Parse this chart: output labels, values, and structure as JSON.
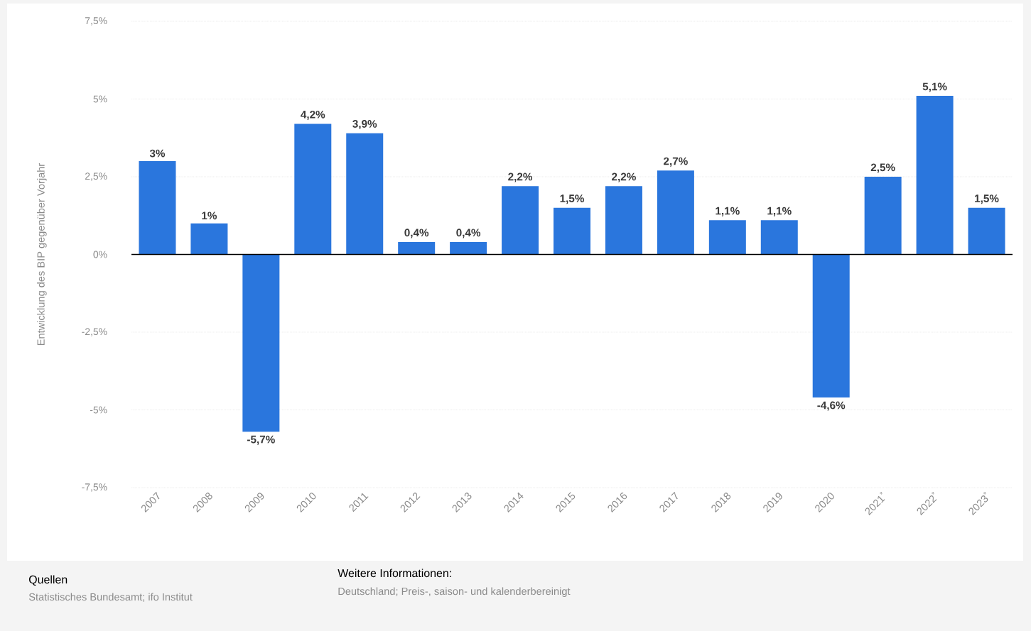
{
  "chart_data": {
    "type": "bar",
    "ylabel": "Entwicklung des BIP gegenüber Vorjahr",
    "categories": [
      "2007",
      "2008",
      "2009",
      "2010",
      "2011",
      "2012",
      "2013",
      "2014",
      "2015",
      "2016",
      "2017",
      "2018",
      "2019",
      "2020",
      "2021$^{*}$",
      "2022$^{*}$",
      "2023$^{*}$"
    ],
    "values": [
      3,
      1,
      -5.7,
      4.2,
      3.9,
      0.4,
      0.4,
      2.2,
      1.5,
      2.2,
      2.7,
      1.1,
      1.1,
      -4.6,
      2.5,
      5.1,
      1.5
    ],
    "value_labels": [
      "3%",
      "1%",
      "-5,7%",
      "4,2%",
      "3,9%",
      "0,4%",
      "0,4%",
      "2,2%",
      "1,5%",
      "2,2%",
      "2,7%",
      "1,1%",
      "1,1%",
      "-4,6%",
      "2,5%",
      "5,1%",
      "1,5%"
    ],
    "color": "#2a76dd",
    "ylim": [
      -7.5,
      7.5
    ],
    "yticks": [
      {
        "value": -7.5,
        "label": "-7,5%"
      },
      {
        "value": -5,
        "label": "-5%"
      },
      {
        "value": -2.5,
        "label": "-2,5%"
      },
      {
        "value": 0,
        "label": "0%"
      },
      {
        "value": 2.5,
        "label": "2,5%"
      },
      {
        "value": 5,
        "label": "5%"
      },
      {
        "value": 7.5,
        "label": "7,5%"
      }
    ],
    "grid": "y",
    "annotations": [
      "Quellen",
      "Statistisches Bundesamt; ifo Institut",
      "Weitere Informationen:",
      "Deutschland; Preis-, saison- und kalenderbereinigt"
    ]
  }
}
